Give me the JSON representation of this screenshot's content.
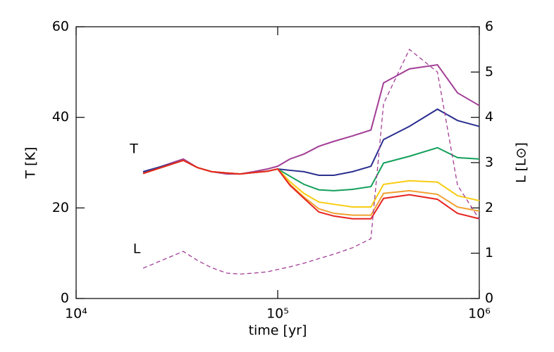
{
  "chart_data": {
    "type": "line",
    "x_label": "time [yr]",
    "y_label": "T [K]",
    "y2_label": "L [L⊙]",
    "annotations": [
      "T",
      "L"
    ],
    "x": [
      21500,
      34000,
      40000,
      47000,
      56000,
      65000,
      76000,
      89000,
      100000,
      115000,
      135000,
      160000,
      190000,
      235000,
      290000,
      335000,
      450000,
      620000,
      780000,
      1000000
    ],
    "xlim": [
      10000,
      1000000
    ],
    "xscale": "log",
    "xticks": [
      {
        "value": 10000,
        "label": "10⁴"
      },
      {
        "value": 100000,
        "label": "10⁵"
      },
      {
        "value": 1000000,
        "label": "10⁶"
      }
    ],
    "ylim": [
      0,
      60
    ],
    "yticks": [
      0,
      20,
      40,
      60
    ],
    "y2lim": [
      0,
      6
    ],
    "y2ticks": [
      0,
      1,
      2,
      3,
      4,
      5,
      6
    ],
    "series": [
      {
        "color": "#a23d96",
        "values": [
          27.8,
          30.8,
          28.9,
          28,
          27.5,
          27.5,
          28,
          28.6,
          29.2,
          30.8,
          31.9,
          33.6,
          34.7,
          35.9,
          37.2,
          47.6,
          50.7,
          51.6,
          45.4,
          42.6
        ]
      },
      {
        "color": "#2b2f8f",
        "values": [
          28,
          30.5,
          28.9,
          28,
          27.7,
          27.5,
          27.8,
          28.1,
          28.6,
          28.3,
          28,
          27.2,
          27.2,
          28,
          29.2,
          35.1,
          38,
          41.8,
          39.3,
          38
        ]
      },
      {
        "color": "#13a05a",
        "values": [
          27.6,
          30.5,
          28.9,
          28,
          27.7,
          27.5,
          27.8,
          28.1,
          28.6,
          27,
          25.2,
          24,
          23.8,
          24.1,
          24.7,
          29.9,
          31.4,
          33.3,
          31.1,
          30.8
        ]
      },
      {
        "color": "#f7cc12",
        "values": [
          27.6,
          30.5,
          28.9,
          28,
          27.7,
          27.5,
          27.8,
          28.1,
          28.6,
          25.8,
          23.2,
          21.3,
          20.8,
          20.2,
          20.2,
          25.2,
          26,
          25.7,
          22.7,
          21.6
        ]
      },
      {
        "color": "#f0a030",
        "values": [
          27.6,
          30.5,
          28.9,
          28,
          27.7,
          27.5,
          27.8,
          28.1,
          28.6,
          25.2,
          22.4,
          19.8,
          18.8,
          18.4,
          18.4,
          23.2,
          23.8,
          23,
          20.2,
          19.3
        ]
      },
      {
        "color": "#e52420",
        "values": [
          27.6,
          30.5,
          28.9,
          28,
          27.7,
          27.5,
          27.8,
          28.1,
          28.6,
          25,
          22.1,
          19.1,
          18.2,
          17.6,
          17.6,
          22.1,
          22.9,
          21.9,
          18.8,
          17.6
        ]
      },
      {
        "color": "#a23d96",
        "axis": "y2",
        "linestyle": "dashed",
        "values": [
          0.67,
          1.04,
          0.84,
          0.68,
          0.56,
          0.54,
          0.56,
          0.59,
          0.64,
          0.7,
          0.78,
          0.88,
          0.98,
          1.12,
          1.32,
          4.3,
          5.5,
          5.0,
          2.5,
          1.75
        ]
      }
    ]
  }
}
